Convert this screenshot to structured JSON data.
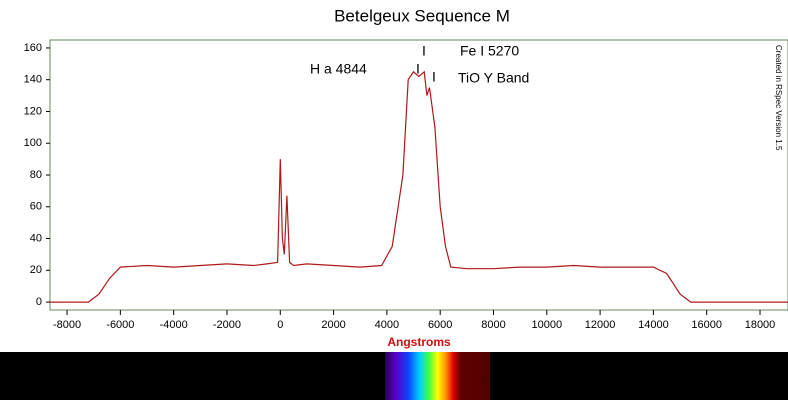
{
  "chart_data": {
    "type": "line",
    "title": "Betelgeux  Sequence M",
    "x_label": "Angstroms",
    "side_note": "Created in RSpec Version 1.5",
    "annotations": [
      "H a 4844",
      "I",
      "Fe I 5270",
      "I",
      "I",
      "TiO Y Band"
    ],
    "x": [
      -8640,
      -7200,
      -6800,
      -6400,
      -6000,
      -5000,
      -4000,
      -3000,
      -2000,
      -1000,
      -500,
      -100,
      0,
      80,
      150,
      250,
      350,
      500,
      1000,
      2000,
      3000,
      3800,
      4200,
      4600,
      4800,
      5000,
      5200,
      5400,
      5500,
      5600,
      5800,
      6000,
      6200,
      6400,
      7000,
      8000,
      9000,
      10000,
      11000,
      12000,
      13000,
      14000,
      14500,
      15000,
      15400,
      19050
    ],
    "values": [
      0,
      0,
      5,
      15,
      22,
      23,
      22,
      23,
      24,
      23,
      24,
      25,
      90,
      40,
      30,
      67,
      25,
      23,
      24,
      23,
      22,
      23,
      35,
      80,
      140,
      145,
      142,
      145,
      130,
      135,
      110,
      60,
      35,
      22,
      21,
      21,
      22,
      22,
      23,
      22,
      22,
      22,
      18,
      5,
      0,
      0
    ],
    "color": "#b01818",
    "xlim": [
      -8640,
      19050
    ],
    "ylim": [
      -5,
      165
    ],
    "xticks": [
      -8000,
      -6000,
      -4000,
      -2000,
      0,
      2000,
      4000,
      6000,
      8000,
      10000,
      12000,
      14000,
      16000,
      18000
    ],
    "yticks": [
      0,
      20,
      40,
      60,
      80,
      100,
      120,
      140,
      160
    ]
  }
}
